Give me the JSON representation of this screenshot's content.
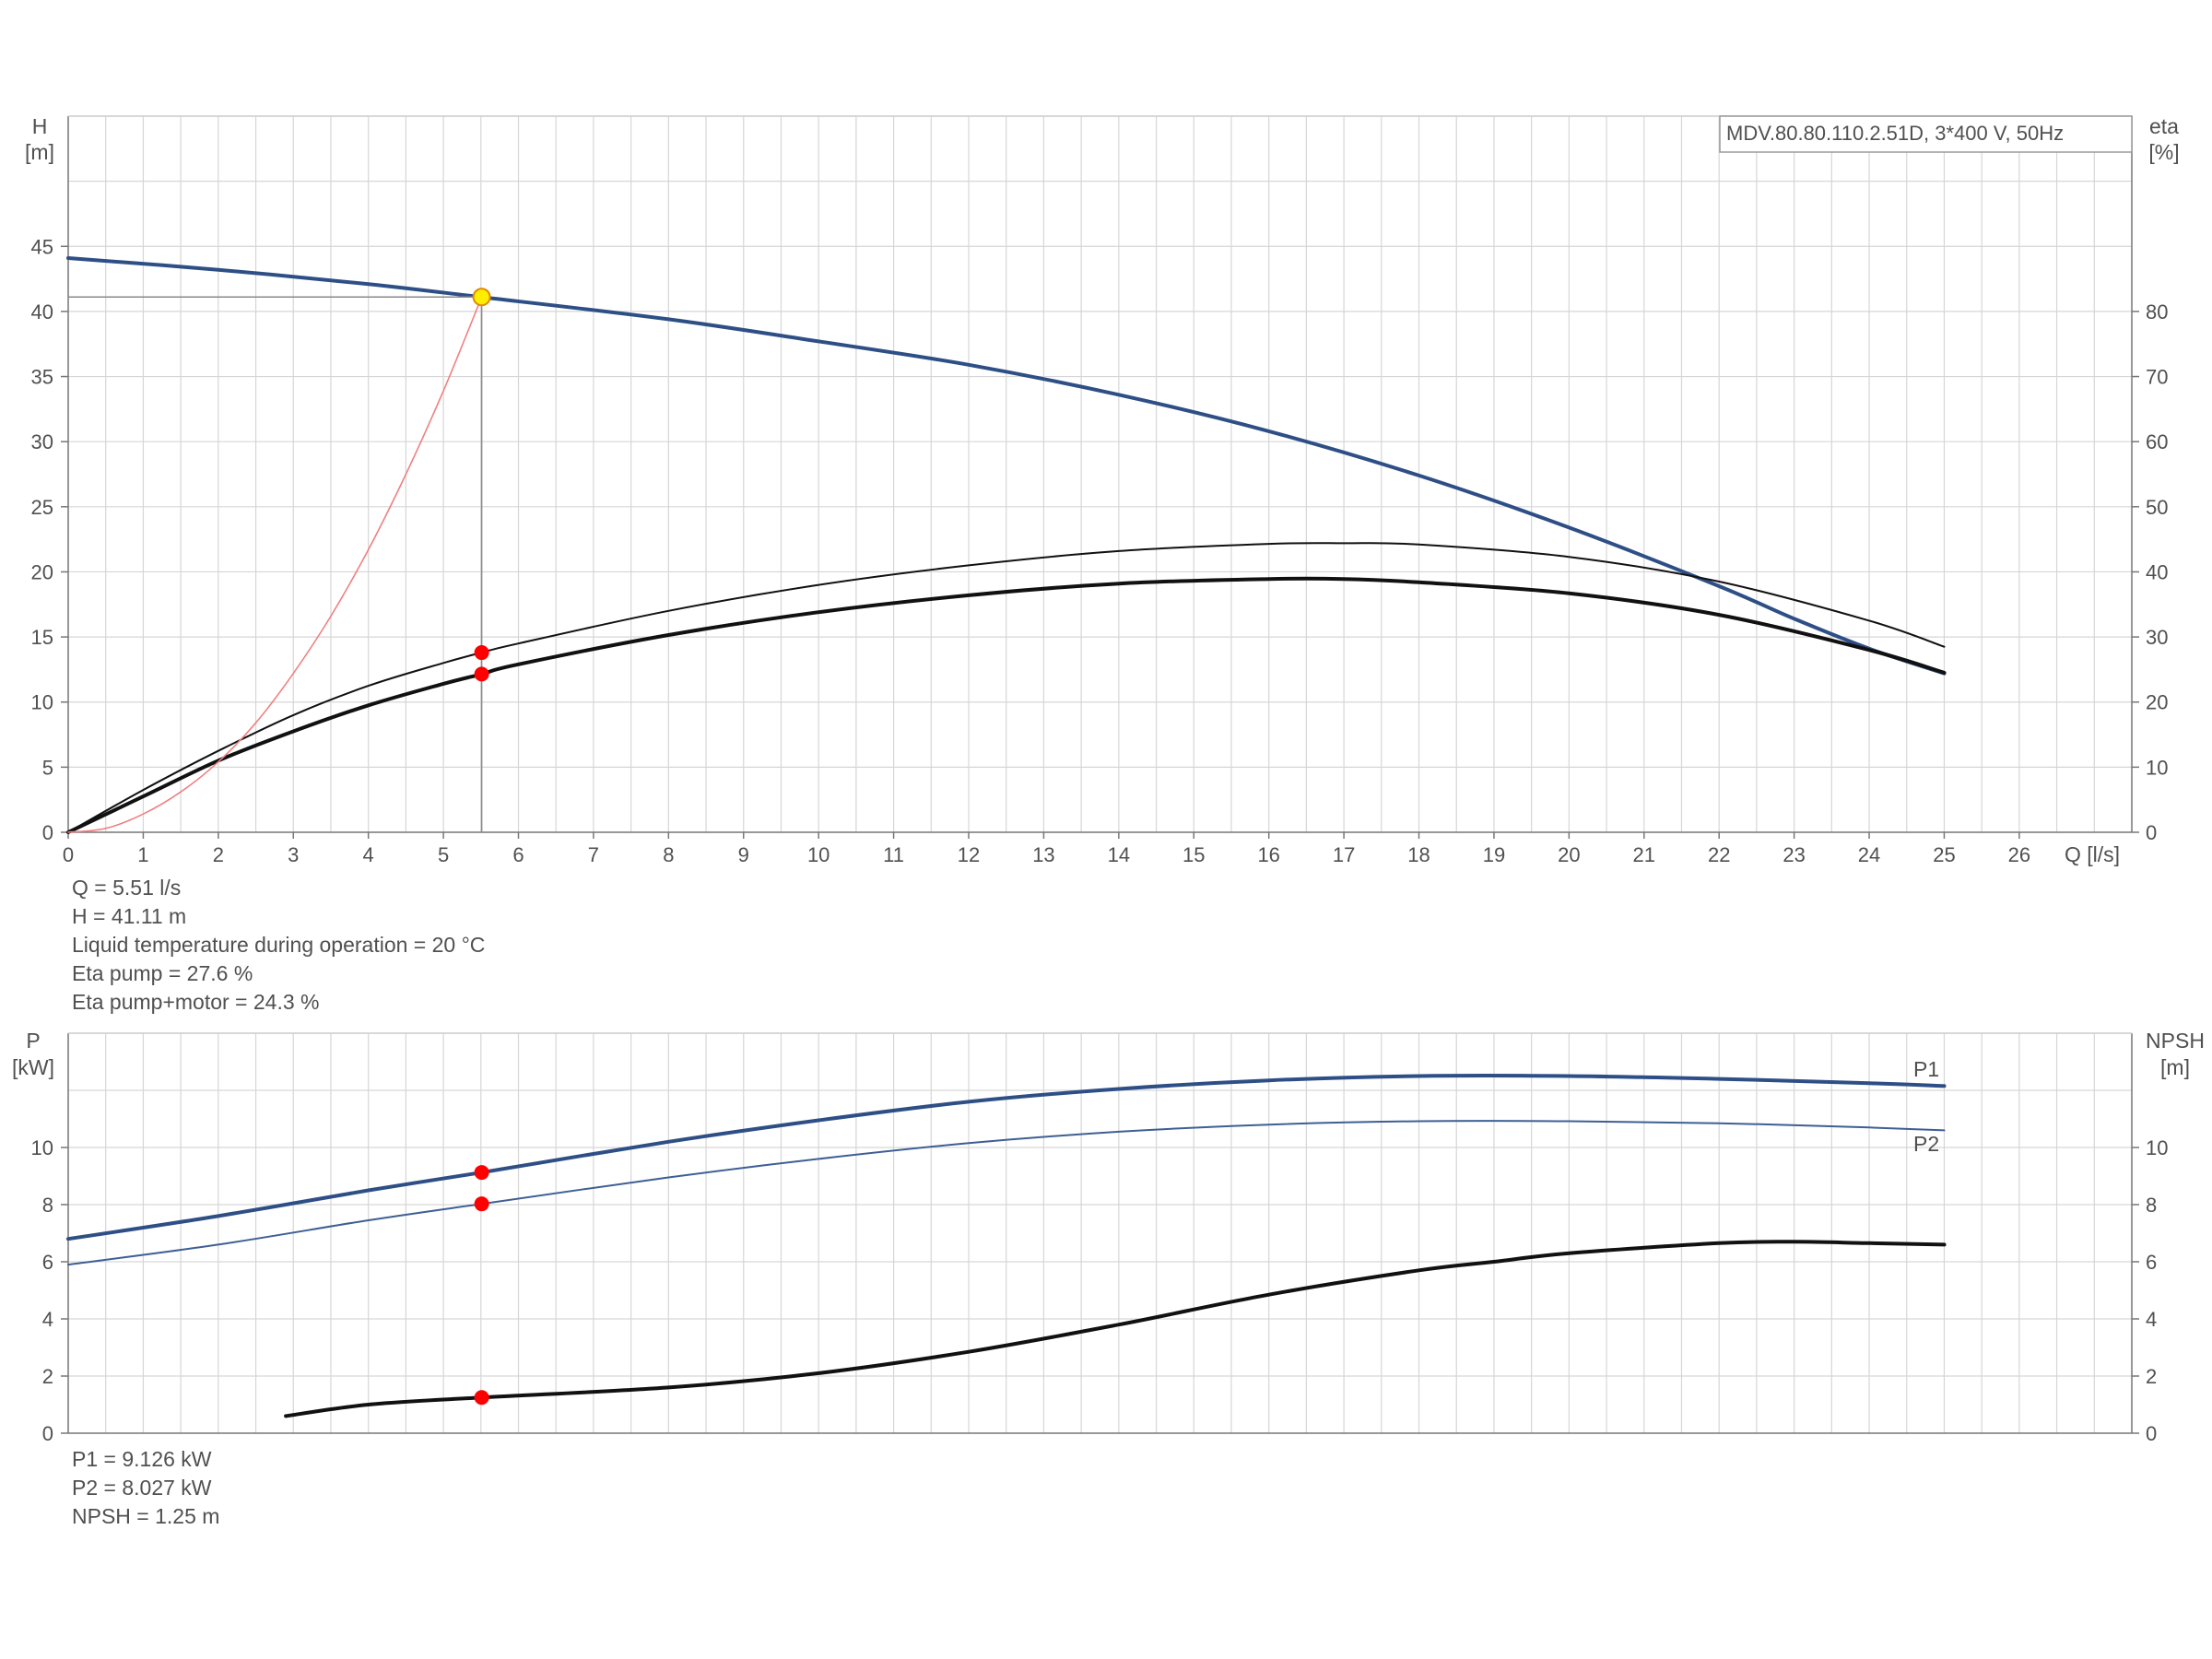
{
  "model_label": "MDV.80.80.110.2.51D, 3*400 V, 50Hz",
  "colors": {
    "head": "#2e4f86",
    "p1": "#2e4f86",
    "p2": "#3e5f94",
    "eta": "#111111",
    "npsh": "#111111",
    "system": "#f08080",
    "operating_point": "#ff0000",
    "duty_marker": "#ffee00",
    "grid": "#d6d6d6",
    "axis": "#777777"
  },
  "chart_data": [
    {
      "type": "line",
      "name": "head-efficiency",
      "x_label": "Q [l/s]",
      "left_axis": {
        "label_line1": "H",
        "label_line2": "[m]",
        "range": [
          0,
          55
        ],
        "ticks": [
          0,
          5,
          10,
          15,
          20,
          25,
          30,
          35,
          40,
          45
        ]
      },
      "right_axis": {
        "label_line1": "eta",
        "label_line2": "[%]",
        "range": [
          0,
          110
        ],
        "ticks": [
          0,
          10,
          20,
          30,
          40,
          50,
          60,
          70,
          80
        ]
      },
      "x_range": [
        0,
        27.5
      ],
      "x_ticks": [
        0,
        1,
        2,
        3,
        4,
        5,
        6,
        7,
        8,
        9,
        10,
        11,
        12,
        13,
        14,
        15,
        16,
        17,
        18,
        19,
        20,
        21,
        22,
        23,
        24,
        25,
        26
      ],
      "grid": true,
      "series": [
        {
          "key": "head",
          "axis": "left",
          "x": [
            0,
            2,
            4,
            5.51,
            8,
            10,
            12,
            14,
            16,
            18,
            20,
            22,
            23,
            24,
            25
          ],
          "y": [
            44.1,
            43.2,
            42.1,
            41.1,
            39.4,
            37.7,
            35.9,
            33.6,
            30.8,
            27.4,
            23.4,
            18.9,
            16.4,
            14.1,
            12.2
          ]
        },
        {
          "key": "eta_pump",
          "axis": "right",
          "x": [
            0,
            1,
            2,
            3,
            4,
            5,
            5.51,
            6,
            8,
            10,
            12,
            14,
            16,
            17,
            18,
            20,
            22,
            24,
            25
          ],
          "y": [
            0,
            6.5,
            12.5,
            18,
            22.5,
            26,
            27.6,
            29,
            34,
            38,
            41,
            43.2,
            44.3,
            44.4,
            44.2,
            42.3,
            38.5,
            32.5,
            28.5
          ]
        },
        {
          "key": "eta_pump_motor",
          "axis": "right",
          "x": [
            0,
            1,
            2,
            3,
            4,
            5,
            5.51,
            6,
            8,
            10,
            12,
            14,
            16,
            17,
            18,
            20,
            22,
            24,
            25
          ],
          "y": [
            0,
            5.5,
            11,
            15.5,
            19.5,
            22.8,
            24.3,
            25.8,
            30.3,
            33.8,
            36.4,
            38.2,
            38.9,
            38.9,
            38.4,
            36.7,
            33.4,
            28,
            24.5
          ]
        },
        {
          "key": "system",
          "axis": "left",
          "x": [
            0,
            0.5,
            1,
            1.5,
            2,
            2.5,
            3,
            3.5,
            4,
            4.5,
            5,
            5.51
          ],
          "y": [
            0,
            0.3,
            1.4,
            3.1,
            5.4,
            8.4,
            12.2,
            16.6,
            21.7,
            27.5,
            33.9,
            41.1
          ]
        }
      ],
      "operating_point": {
        "q": 5.51,
        "h": 41.11,
        "eta_pump": 27.6,
        "eta_pump_motor": 24.3
      }
    },
    {
      "type": "line",
      "name": "power-npsh",
      "left_axis": {
        "label_line1": "P",
        "label_line2": "[kW]",
        "range": [
          0,
          14
        ],
        "ticks": [
          0,
          2,
          4,
          6,
          8,
          10
        ]
      },
      "right_axis": {
        "label_line1": "NPSH",
        "label_line2": "[m]",
        "range": [
          0,
          14
        ],
        "ticks": [
          0,
          2,
          4,
          6,
          8,
          10
        ]
      },
      "x_range": [
        0,
        27.5
      ],
      "grid": true,
      "series": [
        {
          "key": "p1",
          "name": "P1",
          "axis": "left",
          "x": [
            0,
            2,
            4,
            5.51,
            8,
            10,
            12,
            14,
            16,
            18,
            20,
            22,
            24,
            25
          ],
          "y": [
            6.8,
            7.6,
            8.5,
            9.126,
            10.2,
            10.95,
            11.6,
            12.05,
            12.35,
            12.5,
            12.5,
            12.4,
            12.25,
            12.15
          ]
        },
        {
          "key": "p2",
          "name": "P2",
          "axis": "left",
          "x": [
            0,
            2,
            4,
            5.51,
            8,
            10,
            12,
            14,
            16,
            18,
            20,
            22,
            24,
            25
          ],
          "y": [
            5.9,
            6.6,
            7.45,
            8.027,
            8.95,
            9.6,
            10.15,
            10.55,
            10.8,
            10.92,
            10.92,
            10.85,
            10.7,
            10.6
          ]
        },
        {
          "key": "npsh",
          "axis": "right",
          "x": [
            2.9,
            4,
            5.51,
            8,
            10,
            12,
            14,
            16,
            18,
            19,
            20,
            22,
            23,
            24,
            25
          ],
          "y": [
            0.6,
            1.0,
            1.25,
            1.6,
            2.1,
            2.85,
            3.8,
            4.85,
            5.7,
            6.0,
            6.3,
            6.65,
            6.7,
            6.65,
            6.6
          ]
        }
      ],
      "operating_point": {
        "p1": 9.126,
        "p2": 8.027,
        "npsh": 1.25
      }
    }
  ],
  "info_top": [
    "Q = 5.51 l/s",
    "H = 41.11 m",
    "Liquid temperature during operation = 20 °C",
    "Eta pump = 27.6 %",
    "Eta pump+motor = 24.3 %"
  ],
  "info_bottom": [
    "P1 = 9.126 kW",
    "P2 = 8.027 kW",
    "NPSH = 1.25 m"
  ]
}
